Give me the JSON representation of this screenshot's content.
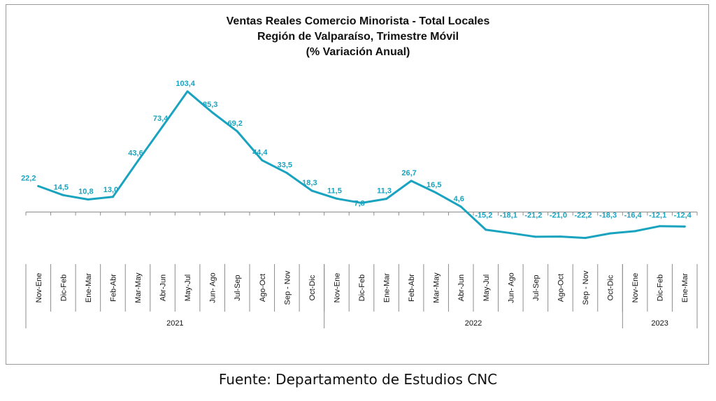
{
  "chart_data": {
    "type": "line",
    "title": "Ventas Reales Comercio Minorista - Total Locales",
    "subtitle": "Región de Valparaíso, Trimestre Móvil",
    "subtitle2": "(% Variación Anual)",
    "categories": [
      "Nov-Ene",
      "Dic-Feb",
      "Ene-Mar",
      "Feb-Abr",
      "Mar-May",
      "Abr-Jun",
      "May-Jul",
      "Jun- Ago",
      "Jul-Sep",
      "Ago-Oct",
      "Sep - Nov",
      "Oct-Dic",
      "Nov-Ene",
      "Dic-Feb",
      "Ene-Mar",
      "Feb-Abr",
      "Mar-May",
      "Abr-Jun",
      "May-Jul",
      "Jun- Ago",
      "Jul-Sep",
      "Ago-Oct",
      "Sep - Nov",
      "Oct-Dic",
      "Nov-Ene",
      "Dic-Feb",
      "Ene-Mar"
    ],
    "series": [
      {
        "color": "#1aa3bf",
        "values": [
          22.2,
          14.5,
          10.8,
          13.0,
          43.6,
          73.4,
          103.4,
          85.3,
          69.2,
          44.4,
          33.5,
          18.3,
          11.5,
          7.8,
          11.3,
          26.7,
          16.5,
          4.6,
          -15.2,
          -18.1,
          -21.2,
          -21.0,
          -22.2,
          -18.3,
          -16.4,
          -12.1,
          -12.4
        ],
        "labels": [
          "22,2",
          "14,5",
          "10,8",
          "13,0",
          "43,6",
          "73,4",
          "103,4",
          "85,3",
          "69,2",
          "44,4",
          "33,5",
          "18,3",
          "11,5",
          "7,8",
          "11,3",
          "26,7",
          "16,5",
          "4,6",
          "-15,2",
          "-18,1",
          "-21,2",
          "-21,0",
          "-22,2",
          "-18,3",
          "-16,4",
          "-12,1",
          "-12,4"
        ]
      }
    ],
    "year_groups": [
      {
        "label": "2021",
        "count": 12
      },
      {
        "label": "2022",
        "count": 12
      },
      {
        "label": "2023",
        "count": 3
      }
    ],
    "ylim": [
      -30,
      105
    ],
    "grid": false,
    "label_color": "#1aa3bf",
    "xlabel": "",
    "ylabel": ""
  },
  "source_note": "Fuente: Departamento de Estudios CNC"
}
